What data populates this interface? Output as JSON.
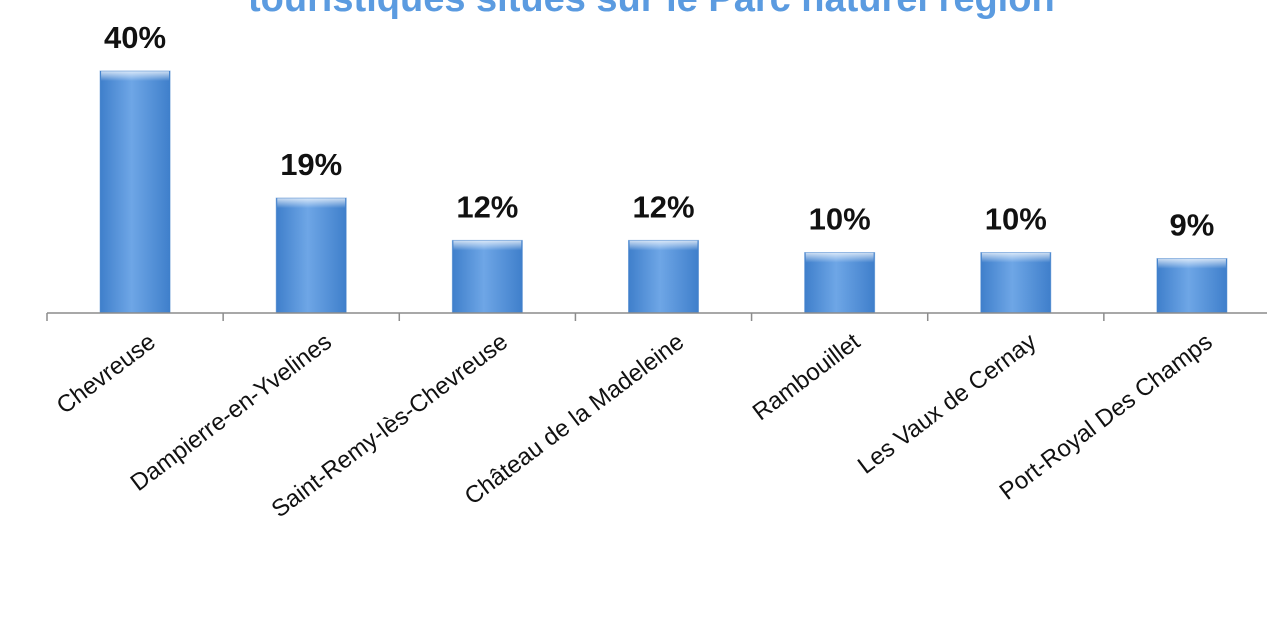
{
  "chart_data": {
    "type": "bar",
    "title": "touristiques situés sur le Parc naturel région",
    "categories": [
      "Chevreuse",
      "Dampierre-en-Yvelines",
      "Saint-Remy-lès-Chevreuse",
      "Château de la Madeleine",
      "Rambouillet",
      "Les Vaux de Cernay",
      "Port-Royal Des Champs"
    ],
    "values": [
      40,
      19,
      12,
      12,
      10,
      10,
      9
    ],
    "data_labels": [
      "40%",
      "19%",
      "12%",
      "12%",
      "10%",
      "10%",
      "9%"
    ],
    "ylim": [
      0,
      40
    ],
    "unit": "%",
    "grid": false,
    "legend": "none",
    "colors": {
      "bar_light": "#b5d3f7",
      "bar_mid": "#6ea6e6",
      "bar_dark": "#3f7fcb",
      "title": "#5b9be0",
      "axis": "#8c8c8c",
      "text": "#111111"
    }
  }
}
